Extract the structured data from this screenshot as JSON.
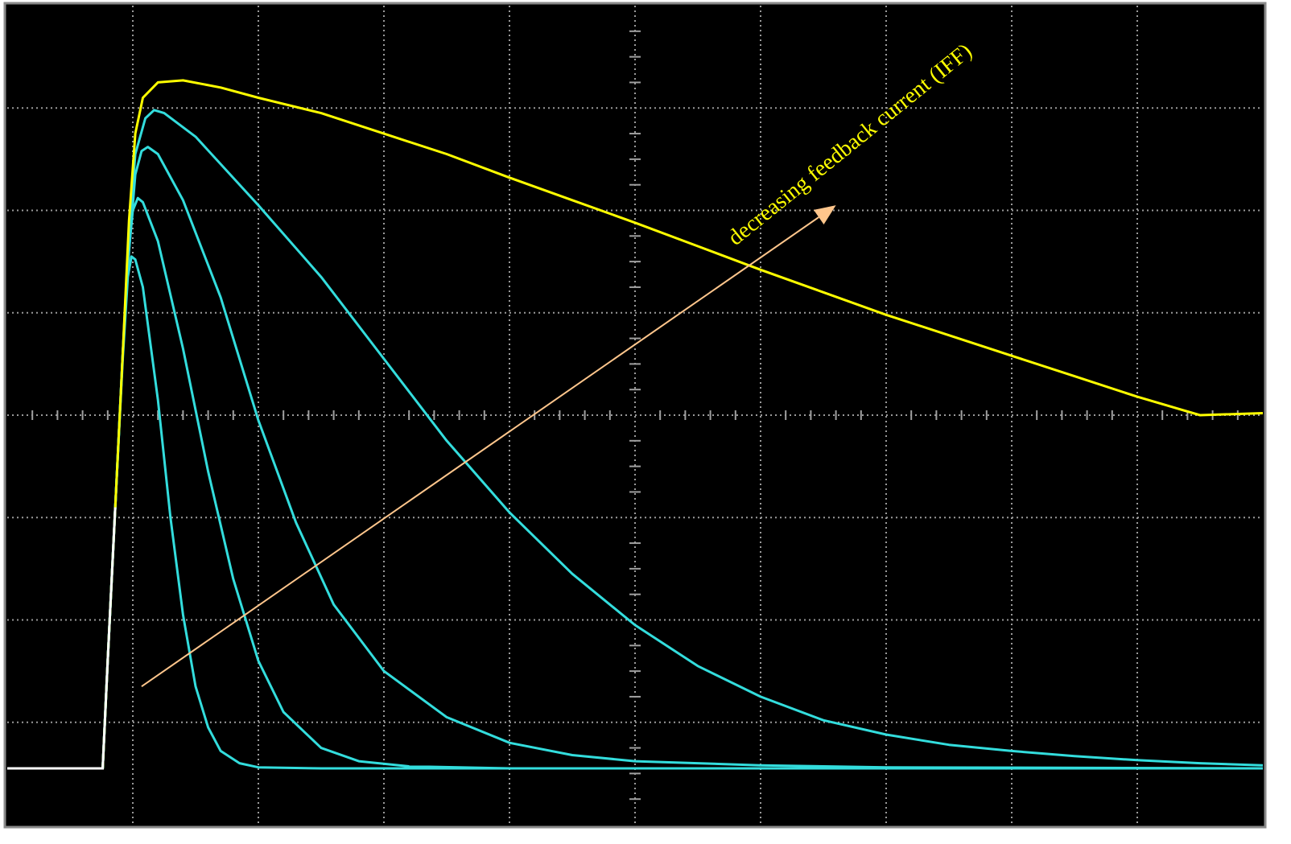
{
  "chart_data": {
    "type": "line",
    "title": "",
    "xlabel": "",
    "ylabel": "",
    "xlim": [
      0,
      10
    ],
    "ylim": [
      -4,
      4
    ],
    "grid": true,
    "grid_style": "dotted",
    "x_divisions": 10,
    "y_divisions": 8,
    "background": "#000000",
    "pulse_start_x": 0.76,
    "baseline_y": -3.45,
    "series": [
      {
        "color": "#ffff00",
        "points": [
          [
            0,
            -3.45
          ],
          [
            0.76,
            -3.45
          ],
          [
            0.8,
            -2.4
          ],
          [
            0.86,
            -0.9
          ],
          [
            0.92,
            0.6
          ],
          [
            0.97,
            1.9
          ],
          [
            1.02,
            2.75
          ],
          [
            1.08,
            3.1
          ],
          [
            1.2,
            3.25
          ],
          [
            1.4,
            3.27
          ],
          [
            1.7,
            3.2
          ],
          [
            2.0,
            3.1
          ],
          [
            2.5,
            2.95
          ],
          [
            3.0,
            2.75
          ],
          [
            3.5,
            2.55
          ],
          [
            4.0,
            2.32
          ],
          [
            4.5,
            2.1
          ],
          [
            5.0,
            1.88
          ],
          [
            5.5,
            1.65
          ],
          [
            6.0,
            1.42
          ],
          [
            6.5,
            1.2
          ],
          [
            7.0,
            0.98
          ],
          [
            7.5,
            0.78
          ],
          [
            8.0,
            0.58
          ],
          [
            8.5,
            0.38
          ],
          [
            9.0,
            0.18
          ],
          [
            9.5,
            0.0
          ],
          [
            10.0,
            0.02
          ]
        ]
      },
      {
        "color": "#33dddd",
        "points": [
          [
            0,
            -3.45
          ],
          [
            0.76,
            -3.45
          ],
          [
            0.8,
            -2.4
          ],
          [
            0.86,
            -0.9
          ],
          [
            0.92,
            0.6
          ],
          [
            0.97,
            1.8
          ],
          [
            1.02,
            2.55
          ],
          [
            1.1,
            2.9
          ],
          [
            1.17,
            2.98
          ],
          [
            1.25,
            2.95
          ],
          [
            1.5,
            2.72
          ],
          [
            2.0,
            2.05
          ],
          [
            2.5,
            1.35
          ],
          [
            3.0,
            0.55
          ],
          [
            3.5,
            -0.25
          ],
          [
            4.0,
            -0.95
          ],
          [
            4.5,
            -1.55
          ],
          [
            5.0,
            -2.05
          ],
          [
            5.5,
            -2.45
          ],
          [
            6.0,
            -2.75
          ],
          [
            6.5,
            -2.98
          ],
          [
            7.0,
            -3.12
          ],
          [
            7.5,
            -3.22
          ],
          [
            8.0,
            -3.28
          ],
          [
            8.5,
            -3.33
          ],
          [
            9.0,
            -3.37
          ],
          [
            9.5,
            -3.4
          ],
          [
            10.0,
            -3.42
          ]
        ]
      },
      {
        "color": "#33dddd",
        "points": [
          [
            0,
            -3.45
          ],
          [
            0.76,
            -3.45
          ],
          [
            0.8,
            -2.4
          ],
          [
            0.86,
            -0.9
          ],
          [
            0.92,
            0.6
          ],
          [
            0.97,
            1.6
          ],
          [
            1.02,
            2.35
          ],
          [
            1.07,
            2.58
          ],
          [
            1.12,
            2.62
          ],
          [
            1.2,
            2.55
          ],
          [
            1.4,
            2.1
          ],
          [
            1.7,
            1.15
          ],
          [
            2.0,
            -0.05
          ],
          [
            2.3,
            -1.05
          ],
          [
            2.6,
            -1.85
          ],
          [
            3.0,
            -2.5
          ],
          [
            3.5,
            -2.95
          ],
          [
            4.0,
            -3.2
          ],
          [
            4.5,
            -3.32
          ],
          [
            5.0,
            -3.38
          ],
          [
            6.0,
            -3.42
          ],
          [
            7.0,
            -3.44
          ],
          [
            10.0,
            -3.45
          ]
        ]
      },
      {
        "color": "#33dddd",
        "points": [
          [
            0,
            -3.45
          ],
          [
            0.76,
            -3.45
          ],
          [
            0.8,
            -2.4
          ],
          [
            0.86,
            -0.9
          ],
          [
            0.92,
            0.6
          ],
          [
            0.96,
            1.5
          ],
          [
            1.0,
            2.0
          ],
          [
            1.04,
            2.12
          ],
          [
            1.08,
            2.08
          ],
          [
            1.2,
            1.7
          ],
          [
            1.4,
            0.65
          ],
          [
            1.6,
            -0.55
          ],
          [
            1.8,
            -1.6
          ],
          [
            2.0,
            -2.4
          ],
          [
            2.2,
            -2.9
          ],
          [
            2.5,
            -3.25
          ],
          [
            2.8,
            -3.38
          ],
          [
            3.2,
            -3.43
          ],
          [
            4.0,
            -3.45
          ],
          [
            10.0,
            -3.45
          ]
        ]
      },
      {
        "color": "#33dddd",
        "points": [
          [
            0,
            -3.45
          ],
          [
            0.76,
            -3.45
          ],
          [
            0.8,
            -2.4
          ],
          [
            0.86,
            -0.9
          ],
          [
            0.92,
            0.55
          ],
          [
            0.96,
            1.35
          ],
          [
            0.99,
            1.55
          ],
          [
            1.02,
            1.52
          ],
          [
            1.08,
            1.25
          ],
          [
            1.2,
            0.15
          ],
          [
            1.3,
            -1.0
          ],
          [
            1.4,
            -1.95
          ],
          [
            1.5,
            -2.65
          ],
          [
            1.6,
            -3.05
          ],
          [
            1.7,
            -3.28
          ],
          [
            1.85,
            -3.4
          ],
          [
            2.0,
            -3.44
          ],
          [
            2.5,
            -3.45
          ],
          [
            10.0,
            -3.45
          ]
        ]
      }
    ],
    "annotation": {
      "text": "decreasing feedback current (IFF)",
      "color": "#ffff00",
      "arrow_color": "#ffc68c",
      "arrow_from": [
        1.07,
        -2.65
      ],
      "arrow_to": [
        6.6,
        2.05
      ],
      "text_anchor": [
        5.8,
        1.65
      ],
      "text_angle_deg": -39
    }
  }
}
